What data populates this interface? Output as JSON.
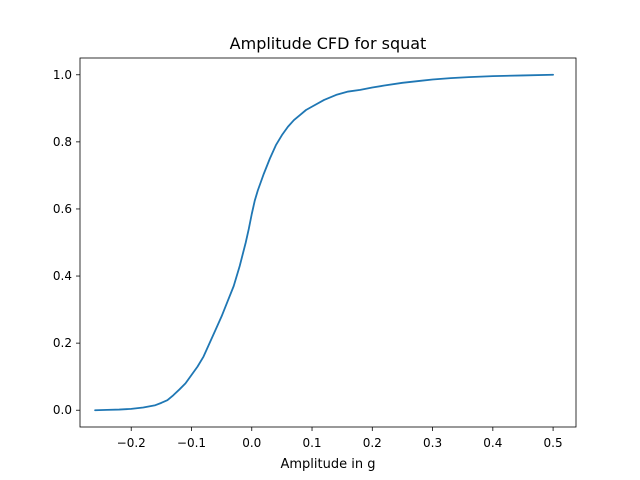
{
  "chart_data": {
    "type": "line",
    "title": "Amplitude CFD for squat",
    "xlabel": "Amplitude in g",
    "ylabel": "",
    "xlim": [
      -0.285,
      0.538
    ],
    "ylim": [
      -0.05,
      1.05
    ],
    "grid": false,
    "legend": "none",
    "x_ticks": [
      -0.2,
      -0.1,
      0.0,
      0.1,
      0.2,
      0.3,
      0.4,
      0.5
    ],
    "x_tick_labels": [
      "−0.2",
      "−0.1",
      "0.0",
      "0.1",
      "0.2",
      "0.3",
      "0.4",
      "0.5"
    ],
    "y_ticks": [
      0.0,
      0.2,
      0.4,
      0.6,
      0.8,
      1.0
    ],
    "y_tick_labels": [
      "0.0",
      "0.2",
      "0.4",
      "0.6",
      "0.8",
      "1.0"
    ],
    "series": [
      {
        "color": "#1f77b4",
        "x": [
          -0.26,
          -0.24,
          -0.22,
          -0.2,
          -0.18,
          -0.16,
          -0.15,
          -0.14,
          -0.13,
          -0.12,
          -0.11,
          -0.1,
          -0.09,
          -0.08,
          -0.07,
          -0.06,
          -0.05,
          -0.04,
          -0.03,
          -0.02,
          -0.01,
          -0.005,
          0.0,
          0.005,
          0.01,
          0.015,
          0.02,
          0.03,
          0.04,
          0.05,
          0.06,
          0.07,
          0.08,
          0.09,
          0.1,
          0.12,
          0.14,
          0.16,
          0.18,
          0.2,
          0.22,
          0.25,
          0.28,
          0.3,
          0.33,
          0.36,
          0.4,
          0.45,
          0.5
        ],
        "y": [
          0.0,
          0.001,
          0.002,
          0.004,
          0.008,
          0.015,
          0.022,
          0.03,
          0.045,
          0.062,
          0.08,
          0.105,
          0.13,
          0.16,
          0.2,
          0.24,
          0.28,
          0.325,
          0.37,
          0.43,
          0.5,
          0.54,
          0.585,
          0.625,
          0.655,
          0.68,
          0.705,
          0.75,
          0.79,
          0.82,
          0.845,
          0.865,
          0.88,
          0.895,
          0.905,
          0.925,
          0.94,
          0.95,
          0.955,
          0.962,
          0.968,
          0.976,
          0.982,
          0.986,
          0.99,
          0.993,
          0.996,
          0.998,
          1.0
        ]
      }
    ]
  }
}
